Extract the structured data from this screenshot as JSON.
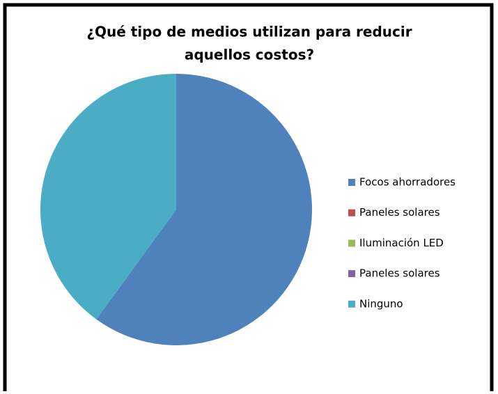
{
  "chart_data": {
    "type": "pie",
    "title": [
      "¿Qué tipo de medios utilizan para reducir",
      "aquellos costos?"
    ],
    "categories": [
      "Focos ahorradores",
      "Paneles solares",
      "Iluminación LED",
      "Paneles solares",
      "Ninguno"
    ],
    "values": [
      60,
      0,
      0,
      0,
      40
    ],
    "colors": [
      "#4f81bd",
      "#c0504d",
      "#9bbb59",
      "#8064a2",
      "#4bacc6"
    ],
    "legend": "right"
  }
}
